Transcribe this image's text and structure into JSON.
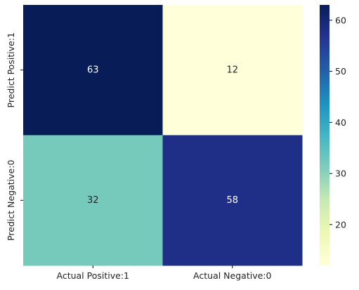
{
  "chart_data": {
    "type": "heatmap",
    "title": "",
    "xlabel": "",
    "ylabel": "",
    "x_categories": [
      "Actual Positive:1",
      "Actual Negative:0"
    ],
    "y_categories": [
      "Predict Positive:1",
      "Predict Negative:0"
    ],
    "values": [
      [
        63,
        12
      ],
      [
        32,
        58
      ]
    ],
    "colormap": "YlGnBu",
    "colorbar": {
      "min": 12,
      "max": 63,
      "ticks": [
        20,
        30,
        40,
        50,
        60
      ]
    },
    "annotations": true
  },
  "colors": {
    "annot_dark_text": "#262626",
    "annot_light_text": "#ffffff",
    "tick_text": "#222222"
  }
}
